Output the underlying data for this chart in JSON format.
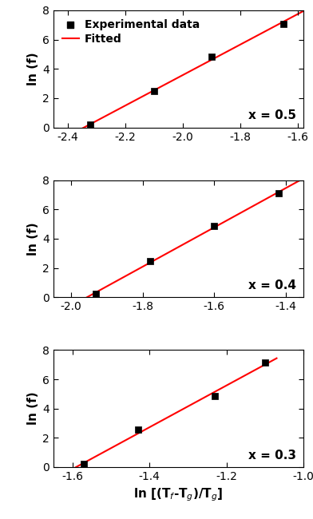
{
  "panels": [
    {
      "label": "x = 0.5",
      "xlim": [
        -2.45,
        -1.58
      ],
      "xticks": [
        -2.4,
        -2.2,
        -2.0,
        -1.8,
        -1.6
      ],
      "data_x": [
        -2.32,
        -2.1,
        -1.9,
        -1.65
      ],
      "data_y": [
        0.18,
        2.5,
        4.85,
        7.1
      ],
      "fit_x": [
        -2.44,
        -1.58
      ]
    },
    {
      "label": "x = 0.4",
      "xlim": [
        -2.05,
        -1.35
      ],
      "xticks": [
        -2.0,
        -1.8,
        -1.6,
        -1.4
      ],
      "data_x": [
        -1.93,
        -1.78,
        -1.6,
        -1.42
      ],
      "data_y": [
        0.22,
        2.5,
        4.85,
        7.1
      ],
      "fit_x": [
        -2.04,
        -1.35
      ]
    },
    {
      "label": "x = 0.3",
      "xlim": [
        -1.65,
        -1.07
      ],
      "xticks": [
        -1.6,
        -1.4,
        -1.2,
        -1.0
      ],
      "data_x": [
        -1.57,
        -1.43,
        -1.23,
        -1.1
      ],
      "data_y": [
        0.2,
        2.55,
        4.85,
        7.15
      ],
      "fit_x": [
        -1.64,
        -1.07
      ]
    }
  ],
  "ylim": [
    0,
    8
  ],
  "yticks": [
    0,
    2,
    4,
    6,
    8
  ],
  "ylabel": "ln (f)",
  "xlabel": "ln [(T$_f$-T$_g$)/T$_g$]",
  "legend_labels": [
    "Experimental data",
    "Fitted"
  ],
  "scatter_color": "black",
  "line_color": "red",
  "scatter_marker": "s",
  "scatter_size": 35,
  "font_size": 10,
  "label_font_size": 11,
  "tick_font_size": 10
}
